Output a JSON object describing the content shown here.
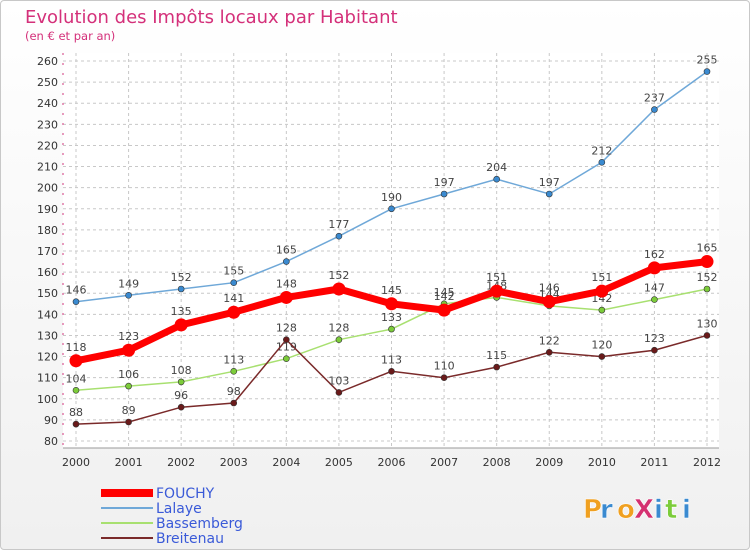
{
  "chart_data": {
    "type": "line",
    "title": "Evolution des Impôts locaux par Habitant",
    "subtitle": "(en € et par an)",
    "categories": [
      "2000",
      "2001",
      "2002",
      "2003",
      "2004",
      "2005",
      "2006",
      "2007",
      "2008",
      "2009",
      "2010",
      "2011",
      "2012"
    ],
    "ylim": [
      80,
      260
    ],
    "yticks": [
      80,
      90,
      100,
      110,
      120,
      130,
      140,
      150,
      160,
      170,
      180,
      190,
      200,
      210,
      220,
      230,
      240,
      250,
      260
    ],
    "grid": true,
    "legend_position": "bottom-left",
    "series": [
      {
        "name": "Lalaye",
        "color": "#6fa8d8",
        "marker": "#3a8ad0",
        "values": [
          146,
          149,
          152,
          155,
          165,
          177,
          190,
          197,
          204,
          197,
          212,
          237,
          255
        ]
      },
      {
        "name": "Bassemberg",
        "color": "#a8e070",
        "marker": "#7ccc3a",
        "values": [
          104,
          106,
          108,
          113,
          119,
          128,
          133,
          145,
          148,
          144,
          142,
          147,
          152
        ]
      },
      {
        "name": "Breitenau",
        "color": "#7a2a2a",
        "marker": "#6a1a1a",
        "values": [
          88,
          89,
          96,
          98,
          128,
          103,
          113,
          110,
          115,
          122,
          120,
          123,
          130
        ]
      },
      {
        "name": "FOUCHY",
        "color": "#ff0000",
        "marker": "#ff0000",
        "values": [
          118,
          123,
          135,
          141,
          148,
          152,
          145,
          142,
          151,
          146,
          151,
          162,
          165
        ],
        "bold": true
      }
    ],
    "legend_order": [
      "FOUCHY",
      "Lalaye",
      "Bassemberg",
      "Breitenau"
    ]
  },
  "logo": {
    "text": "ProXiti"
  }
}
